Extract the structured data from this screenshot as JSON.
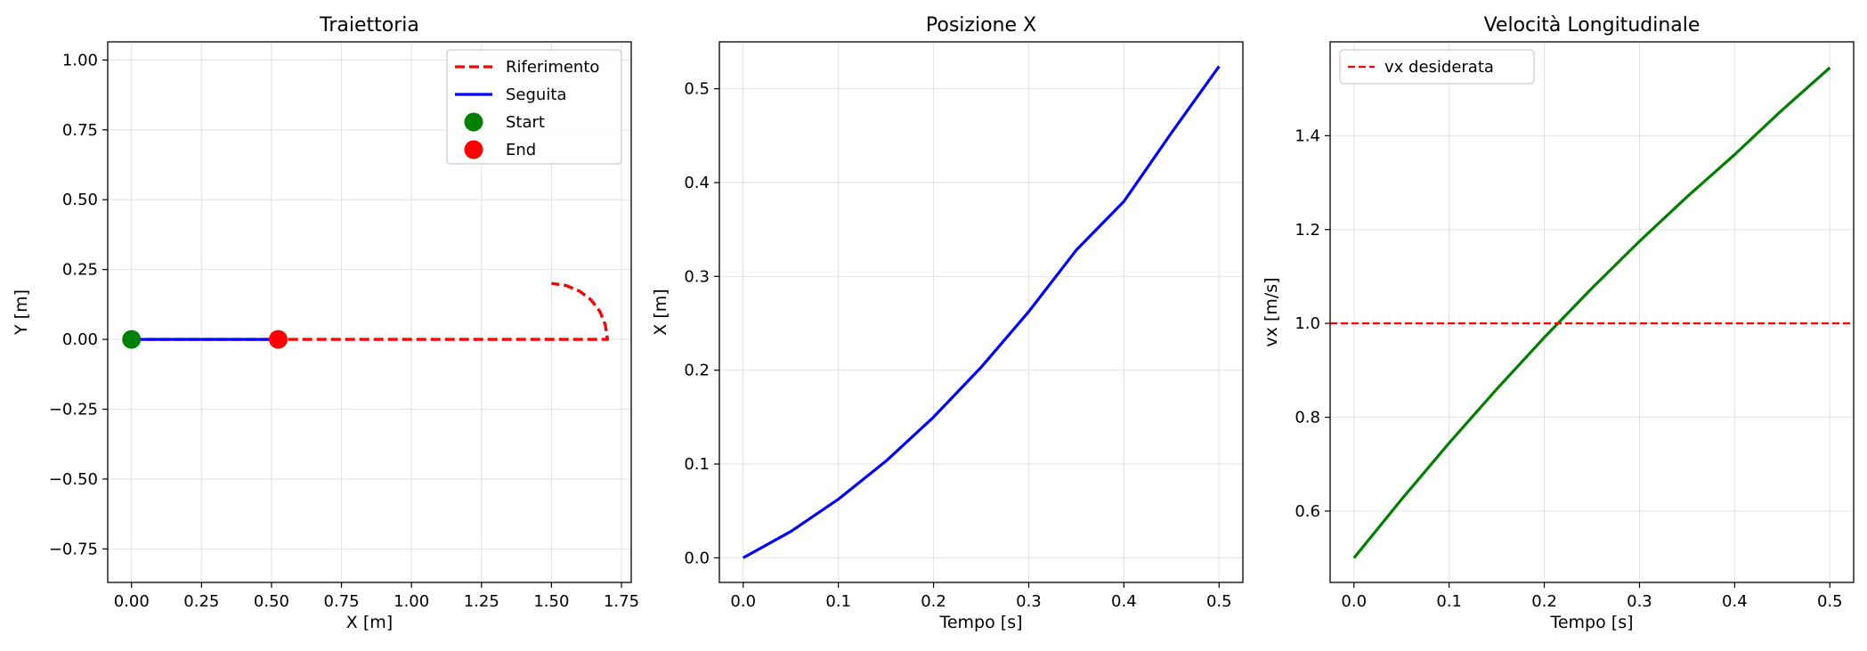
{
  "chart_data": [
    {
      "type": "line",
      "title": "Traiettoria",
      "xlabel": "X [m]",
      "ylabel": "Y [m]",
      "xlim": [
        -0.085,
        1.785
      ],
      "ylim": [
        -0.87,
        1.065
      ],
      "xticks": [
        0,
        0.25,
        0.5,
        0.75,
        1,
        1.25,
        1.5,
        1.75
      ],
      "xtick_labels": [
        "0.00",
        "0.25",
        "0.50",
        "0.75",
        "1.00",
        "1.25",
        "1.50",
        "1.75"
      ],
      "yticks": [
        -0.75,
        -0.5,
        -0.25,
        0,
        0.25,
        0.5,
        0.75,
        1
      ],
      "ytick_labels": [
        "−0.75",
        "−0.50",
        "−0.25",
        "0.00",
        "0.25",
        "0.50",
        "0.75",
        "1.00"
      ],
      "grid": true,
      "legend_position": "top-right",
      "series": [
        {
          "name": "Riferimento",
          "color": "#ff0000",
          "style": "dashed",
          "x": [
            0,
            0.25,
            0.5,
            0.75,
            1.0,
            1.25,
            1.5,
            1.6,
            1.7,
            1.7,
            1.6926,
            1.6732,
            1.6414,
            1.6,
            1.5518,
            1.5
          ],
          "y": [
            0,
            0,
            0,
            0,
            0,
            0,
            0,
            0,
            0,
            0.0,
            0.0518,
            0.1,
            0.1414,
            0.1732,
            0.1932,
            0.2
          ]
        },
        {
          "name": "Seguita",
          "color": "#0000ff",
          "style": "solid",
          "x": [
            0,
            0.1,
            0.2,
            0.3,
            0.4,
            0.524
          ],
          "y": [
            0,
            0,
            0,
            0,
            0,
            0
          ]
        },
        {
          "name": "Start",
          "color": "#008000",
          "style": "marker",
          "x": [
            0
          ],
          "y": [
            0
          ]
        },
        {
          "name": "End",
          "color": "#ff0000",
          "style": "marker",
          "x": [
            0.524
          ],
          "y": [
            0
          ]
        }
      ]
    },
    {
      "type": "line",
      "title": "Posizione X",
      "xlabel": "Tempo [s]",
      "ylabel": "X [m]",
      "xlim": [
        -0.025,
        0.525
      ],
      "ylim": [
        -0.0262,
        0.55
      ],
      "xticks": [
        0,
        0.1,
        0.2,
        0.3,
        0.4,
        0.5
      ],
      "xtick_labels": [
        "0.0",
        "0.1",
        "0.2",
        "0.3",
        "0.4",
        "0.5"
      ],
      "yticks": [
        0,
        0.1,
        0.2,
        0.3,
        0.4,
        0.5
      ],
      "ytick_labels": [
        "0.0",
        "0.1",
        "0.2",
        "0.3",
        "0.4",
        "0.5"
      ],
      "grid": true,
      "series": [
        {
          "color": "#0000ff",
          "style": "solid",
          "x": [
            0,
            0.05,
            0.1,
            0.15,
            0.2,
            0.25,
            0.3,
            0.35,
            0.4,
            0.45,
            0.5
          ],
          "y": [
            0,
            0.0281,
            0.0625,
            0.1031,
            0.15,
            0.2031,
            0.2625,
            0.3281,
            0.38,
            0.4531,
            0.524
          ]
        }
      ]
    },
    {
      "type": "line",
      "title": "Velocità Longitudinale",
      "xlabel": "Tempo [s]",
      "ylabel": "vx [m/s]",
      "xlim": [
        -0.025,
        0.525
      ],
      "ylim": [
        0.448,
        1.6
      ],
      "xticks": [
        0,
        0.1,
        0.2,
        0.3,
        0.4,
        0.5
      ],
      "xtick_labels": [
        "0.0",
        "0.1",
        "0.2",
        "0.3",
        "0.4",
        "0.5"
      ],
      "yticks": [
        0.6,
        0.8,
        1.0,
        1.2,
        1.4
      ],
      "ytick_labels": [
        "0.6",
        "0.8",
        "1.0",
        "1.2",
        "1.4"
      ],
      "grid": true,
      "legend_position": "top-left",
      "series": [
        {
          "color": "#008000",
          "style": "solid",
          "x": [
            0,
            0.05,
            0.1,
            0.15,
            0.2,
            0.25,
            0.3,
            0.35,
            0.4,
            0.45,
            0.5
          ],
          "y": [
            0.5,
            0.625,
            0.745,
            0.86,
            0.97,
            1.075,
            1.175,
            1.27,
            1.36,
            1.455,
            1.545
          ]
        },
        {
          "name": "vx desiderata",
          "color": "#ff0000",
          "style": "dashed-hline",
          "y": [
            1.0
          ]
        }
      ]
    }
  ]
}
